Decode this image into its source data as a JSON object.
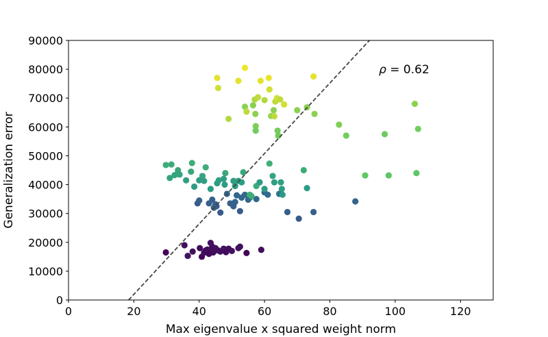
{
  "chart_data": {
    "type": "scatter",
    "title": "",
    "xlabel": "Max eigenvalue x squared weight norm",
    "ylabel": "Generalization error",
    "xlim": [
      0,
      130
    ],
    "ylim": [
      0,
      90000
    ],
    "xticks": [
      0,
      20,
      40,
      60,
      80,
      100,
      120
    ],
    "yticks": [
      0,
      10000,
      20000,
      30000,
      40000,
      50000,
      60000,
      70000,
      80000,
      90000
    ],
    "grid": false,
    "annotation": {
      "symbol": "ρ",
      "text": " = 0.62",
      "x": 95,
      "y": 80000
    },
    "fit_line": {
      "x": [
        18.4,
        92.1
      ],
      "y": [
        0,
        90000
      ],
      "style": "dashed",
      "color": "#444444"
    },
    "colormap": "viridis",
    "points": [
      {
        "x": 29.8,
        "y": 16500,
        "c": 0.02
      },
      {
        "x": 35.5,
        "y": 19000,
        "c": 0.04
      },
      {
        "x": 36.5,
        "y": 15300,
        "c": 0.05
      },
      {
        "x": 38.0,
        "y": 16800,
        "c": 0.04
      },
      {
        "x": 40.2,
        "y": 18000,
        "c": 0.03
      },
      {
        "x": 40.8,
        "y": 15000,
        "c": 0.02
      },
      {
        "x": 41.5,
        "y": 16400,
        "c": 0.05
      },
      {
        "x": 42.5,
        "y": 17500,
        "c": 0.04
      },
      {
        "x": 43.0,
        "y": 16000,
        "c": 0.02
      },
      {
        "x": 43.5,
        "y": 19800,
        "c": 0.06
      },
      {
        "x": 44.0,
        "y": 18500,
        "c": 0.05
      },
      {
        "x": 44.3,
        "y": 16500,
        "c": 0.03
      },
      {
        "x": 45.0,
        "y": 18000,
        "c": 0.06
      },
      {
        "x": 45.8,
        "y": 17200,
        "c": 0.05
      },
      {
        "x": 46.5,
        "y": 16800,
        "c": 0.04
      },
      {
        "x": 47.5,
        "y": 17800,
        "c": 0.05
      },
      {
        "x": 48.2,
        "y": 16600,
        "c": 0.03
      },
      {
        "x": 49.0,
        "y": 17800,
        "c": 0.04
      },
      {
        "x": 50.0,
        "y": 17000,
        "c": 0.05
      },
      {
        "x": 52.0,
        "y": 18000,
        "c": 0.06
      },
      {
        "x": 52.5,
        "y": 18500,
        "c": 0.05
      },
      {
        "x": 54.5,
        "y": 16300,
        "c": 0.01
      },
      {
        "x": 59.0,
        "y": 17400,
        "c": 0.04
      },
      {
        "x": 42.0,
        "y": 17200,
        "c": 0.03
      },
      {
        "x": 43.8,
        "y": 17600,
        "c": 0.04
      },
      {
        "x": 39.5,
        "y": 33500,
        "c": 0.28
      },
      {
        "x": 40.0,
        "y": 34500,
        "c": 0.3
      },
      {
        "x": 43.0,
        "y": 33500,
        "c": 0.3
      },
      {
        "x": 44.0,
        "y": 34800,
        "c": 0.31
      },
      {
        "x": 45.0,
        "y": 33200,
        "c": 0.3
      },
      {
        "x": 45.3,
        "y": 32500,
        "c": 0.28
      },
      {
        "x": 46.5,
        "y": 30300,
        "c": 0.28
      },
      {
        "x": 48.5,
        "y": 36800,
        "c": 0.33
      },
      {
        "x": 49.5,
        "y": 33500,
        "c": 0.31
      },
      {
        "x": 50.5,
        "y": 32500,
        "c": 0.3
      },
      {
        "x": 51.5,
        "y": 36300,
        "c": 0.33
      },
      {
        "x": 52.5,
        "y": 30800,
        "c": 0.29
      },
      {
        "x": 53.0,
        "y": 35500,
        "c": 0.33
      },
      {
        "x": 54.0,
        "y": 36500,
        "c": 0.34
      },
      {
        "x": 55.0,
        "y": 34800,
        "c": 0.33
      },
      {
        "x": 55.5,
        "y": 35500,
        "c": 0.34
      },
      {
        "x": 57.5,
        "y": 35000,
        "c": 0.34
      },
      {
        "x": 60.0,
        "y": 37300,
        "c": 0.35
      },
      {
        "x": 61.0,
        "y": 36500,
        "c": 0.35
      },
      {
        "x": 64.5,
        "y": 36800,
        "c": 0.36
      },
      {
        "x": 67.0,
        "y": 30500,
        "c": 0.3
      },
      {
        "x": 70.5,
        "y": 28200,
        "c": 0.28
      },
      {
        "x": 75.0,
        "y": 30500,
        "c": 0.3
      },
      {
        "x": 87.8,
        "y": 34200,
        "c": 0.32
      },
      {
        "x": 44.5,
        "y": 32000,
        "c": 0.3
      },
      {
        "x": 51.0,
        "y": 34000,
        "c": 0.32
      },
      {
        "x": 29.8,
        "y": 46800,
        "c": 0.62
      },
      {
        "x": 31.0,
        "y": 42300,
        "c": 0.58
      },
      {
        "x": 31.5,
        "y": 47000,
        "c": 0.62
      },
      {
        "x": 32.5,
        "y": 43300,
        "c": 0.58
      },
      {
        "x": 33.5,
        "y": 45000,
        "c": 0.6
      },
      {
        "x": 34.0,
        "y": 43500,
        "c": 0.58
      },
      {
        "x": 36.0,
        "y": 41500,
        "c": 0.56
      },
      {
        "x": 37.5,
        "y": 44500,
        "c": 0.6
      },
      {
        "x": 37.8,
        "y": 47500,
        "c": 0.63
      },
      {
        "x": 38.5,
        "y": 39300,
        "c": 0.55
      },
      {
        "x": 40.0,
        "y": 41500,
        "c": 0.56
      },
      {
        "x": 41.0,
        "y": 43000,
        "c": 0.58
      },
      {
        "x": 41.5,
        "y": 41300,
        "c": 0.56
      },
      {
        "x": 43.5,
        "y": 38500,
        "c": 0.55
      },
      {
        "x": 45.5,
        "y": 40500,
        "c": 0.55
      },
      {
        "x": 46.0,
        "y": 41500,
        "c": 0.56
      },
      {
        "x": 47.5,
        "y": 42000,
        "c": 0.56
      },
      {
        "x": 47.8,
        "y": 40000,
        "c": 0.55
      },
      {
        "x": 48.0,
        "y": 44000,
        "c": 0.6
      },
      {
        "x": 50.5,
        "y": 41300,
        "c": 0.56
      },
      {
        "x": 51.0,
        "y": 39500,
        "c": 0.55
      },
      {
        "x": 52.0,
        "y": 41300,
        "c": 0.56
      },
      {
        "x": 53.0,
        "y": 40800,
        "c": 0.55
      },
      {
        "x": 53.5,
        "y": 44300,
        "c": 0.6
      },
      {
        "x": 55.5,
        "y": 36500,
        "c": 0.63
      },
      {
        "x": 56.0,
        "y": 36000,
        "c": 0.62
      },
      {
        "x": 57.5,
        "y": 39500,
        "c": 0.62
      },
      {
        "x": 58.5,
        "y": 40800,
        "c": 0.55
      },
      {
        "x": 60.0,
        "y": 38500,
        "c": 0.55
      },
      {
        "x": 61.5,
        "y": 47300,
        "c": 0.63
      },
      {
        "x": 62.5,
        "y": 43000,
        "c": 0.58
      },
      {
        "x": 63.0,
        "y": 40800,
        "c": 0.56
      },
      {
        "x": 65.0,
        "y": 40800,
        "c": 0.56
      },
      {
        "x": 65.3,
        "y": 38500,
        "c": 0.55
      },
      {
        "x": 65.5,
        "y": 36500,
        "c": 0.54
      },
      {
        "x": 72.0,
        "y": 45000,
        "c": 0.62
      },
      {
        "x": 73.0,
        "y": 38800,
        "c": 0.55
      },
      {
        "x": 42.0,
        "y": 46000,
        "c": 0.62
      },
      {
        "x": 45.5,
        "y": 77000,
        "c": 0.96
      },
      {
        "x": 45.8,
        "y": 73500,
        "c": 0.93
      },
      {
        "x": 49.0,
        "y": 62800,
        "c": 0.88
      },
      {
        "x": 52.0,
        "y": 76000,
        "c": 0.96
      },
      {
        "x": 54.0,
        "y": 80500,
        "c": 0.98
      },
      {
        "x": 54.0,
        "y": 67000,
        "c": 0.82
      },
      {
        "x": 54.5,
        "y": 65300,
        "c": 0.9
      },
      {
        "x": 56.5,
        "y": 67500,
        "c": 0.82
      },
      {
        "x": 57.0,
        "y": 69500,
        "c": 0.88
      },
      {
        "x": 57.2,
        "y": 64500,
        "c": 0.82
      },
      {
        "x": 57.3,
        "y": 60300,
        "c": 0.8
      },
      {
        "x": 57.3,
        "y": 58700,
        "c": 0.78
      },
      {
        "x": 58.0,
        "y": 70300,
        "c": 0.9
      },
      {
        "x": 58.8,
        "y": 76000,
        "c": 0.96
      },
      {
        "x": 60.0,
        "y": 69300,
        "c": 0.88
      },
      {
        "x": 61.3,
        "y": 77000,
        "c": 0.97
      },
      {
        "x": 61.5,
        "y": 73000,
        "c": 0.93
      },
      {
        "x": 62.0,
        "y": 63800,
        "c": 0.84
      },
      {
        "x": 62.8,
        "y": 65800,
        "c": 0.82
      },
      {
        "x": 63.0,
        "y": 63700,
        "c": 0.9
      },
      {
        "x": 63.3,
        "y": 68800,
        "c": 0.9
      },
      {
        "x": 63.8,
        "y": 70000,
        "c": 0.93
      },
      {
        "x": 64.0,
        "y": 58700,
        "c": 0.78
      },
      {
        "x": 64.2,
        "y": 57000,
        "c": 0.78
      },
      {
        "x": 64.8,
        "y": 69500,
        "c": 0.9
      },
      {
        "x": 66.0,
        "y": 67800,
        "c": 0.93
      },
      {
        "x": 70.0,
        "y": 65800,
        "c": 0.82
      },
      {
        "x": 73.0,
        "y": 66800,
        "c": 0.82
      },
      {
        "x": 75.0,
        "y": 77500,
        "c": 0.96
      },
      {
        "x": 75.3,
        "y": 64500,
        "c": 0.82
      },
      {
        "x": 82.8,
        "y": 60800,
        "c": 0.8
      },
      {
        "x": 85.0,
        "y": 57000,
        "c": 0.78
      },
      {
        "x": 90.8,
        "y": 43200,
        "c": 0.75
      },
      {
        "x": 96.8,
        "y": 57500,
        "c": 0.77
      },
      {
        "x": 98.0,
        "y": 43200,
        "c": 0.74
      },
      {
        "x": 106.0,
        "y": 68000,
        "c": 0.82
      },
      {
        "x": 106.5,
        "y": 44000,
        "c": 0.74
      },
      {
        "x": 107.0,
        "y": 59300,
        "c": 0.78
      }
    ]
  }
}
